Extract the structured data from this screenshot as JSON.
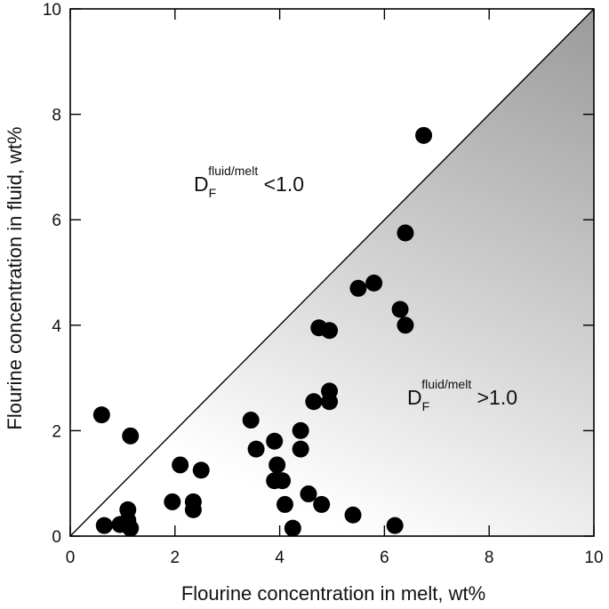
{
  "chart_data": {
    "type": "scatter",
    "title": "",
    "xlabel": "Flourine concentration in melt, wt%",
    "ylabel": "Flourine concentration in fluid, wt%",
    "xlim": [
      0,
      10
    ],
    "ylim": [
      0,
      10
    ],
    "xticks": [
      "0",
      "2",
      "4",
      "6",
      "8",
      "10"
    ],
    "yticks": [
      "0",
      "2",
      "4",
      "6",
      "8",
      "10"
    ],
    "grid": false,
    "reference_line": "1:1 diagonal",
    "annotations": {
      "upper": {
        "main": "D",
        "sub": "F",
        "sup": "fluid/melt",
        "tail": " <1.0"
      },
      "lower": {
        "main": "D",
        "sub": "F",
        "sup": "fluid/melt",
        "tail": " >1.0"
      }
    },
    "points": [
      [
        0.6,
        2.3
      ],
      [
        1.15,
        1.9
      ],
      [
        0.65,
        0.2
      ],
      [
        0.95,
        0.22
      ],
      [
        1.1,
        0.5
      ],
      [
        1.1,
        0.3
      ],
      [
        1.15,
        0.15
      ],
      [
        1.95,
        0.65
      ],
      [
        2.1,
        1.35
      ],
      [
        2.35,
        0.65
      ],
      [
        2.35,
        0.5
      ],
      [
        2.5,
        1.25
      ],
      [
        3.45,
        2.2
      ],
      [
        3.55,
        1.65
      ],
      [
        3.9,
        1.8
      ],
      [
        3.95,
        1.35
      ],
      [
        3.9,
        1.05
      ],
      [
        4.05,
        1.05
      ],
      [
        4.1,
        0.6
      ],
      [
        4.25,
        0.15
      ],
      [
        4.4,
        2.0
      ],
      [
        4.4,
        1.65
      ],
      [
        4.55,
        0.8
      ],
      [
        4.65,
        2.55
      ],
      [
        4.75,
        3.95
      ],
      [
        4.8,
        0.6
      ],
      [
        4.95,
        3.9
      ],
      [
        4.95,
        2.75
      ],
      [
        4.95,
        2.55
      ],
      [
        5.4,
        0.4
      ],
      [
        5.5,
        4.7
      ],
      [
        5.8,
        4.8
      ],
      [
        6.2,
        0.2
      ],
      [
        6.3,
        4.3
      ],
      [
        6.4,
        5.75
      ],
      [
        6.4,
        4.0
      ],
      [
        6.75,
        7.6
      ]
    ],
    "colors": {
      "marker": "#000000",
      "gradient_dark": "#9a9a9a",
      "gradient_light": "#ffffff"
    }
  }
}
